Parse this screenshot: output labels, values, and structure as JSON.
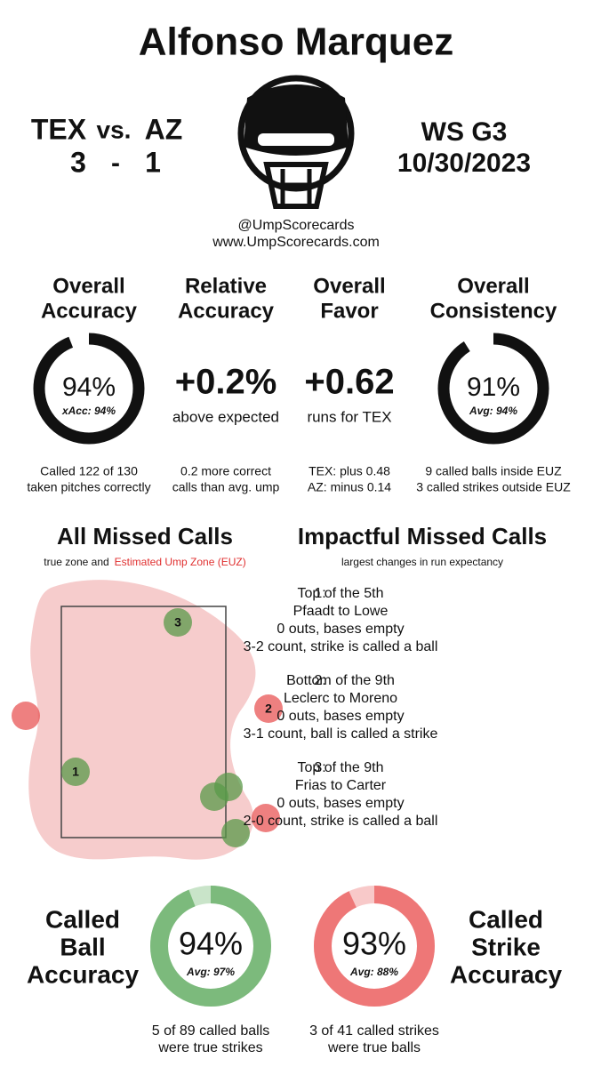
{
  "header": {
    "title": "Alfonso Marquez",
    "away_team": "TEX",
    "vs": "vs.",
    "home_team": "AZ",
    "away_score": "3",
    "dash": "-",
    "home_score": "1",
    "game": "WS  G3",
    "date": "10/30/2023",
    "handle": "@UmpScorecards",
    "website": "www.UmpScorecards.com"
  },
  "metrics": [
    {
      "title_lines": [
        "Overall",
        "Accuracy"
      ],
      "value": 94,
      "label": "94%",
      "sub": "xAcc: 94%",
      "notes": [
        "Called 122 of 130",
        "taken pitches correctly"
      ]
    },
    {
      "title_lines": [
        "Relative",
        "Accuracy"
      ],
      "label": "+0.2%",
      "caption": "above expected",
      "notes": [
        "0.2 more correct",
        "calls than avg. ump"
      ]
    },
    {
      "title_lines": [
        "Overall",
        "Favor"
      ],
      "label": "+0.62",
      "caption": "runs for TEX",
      "notes": [
        "TEX: plus 0.48",
        "AZ: minus 0.14"
      ]
    },
    {
      "title_lines": [
        "Overall",
        "Consistency"
      ],
      "value": 91,
      "label": "91%",
      "sub": "Avg: 94%",
      "notes": [
        "9 called balls inside EUZ",
        "3 called strikes outside EUZ"
      ]
    }
  ],
  "missed_calls": {
    "title": "All Missed Calls",
    "subtitle": "true zone and",
    "subtitle_highlight": "Estimated Ump Zone (EUZ)",
    "markers": [
      "1",
      "2",
      "3"
    ]
  },
  "impactful": {
    "title": "Impactful Missed Calls",
    "subtitle": "largest changes in run expectancy",
    "items": [
      {
        "number": "1:",
        "lines": [
          "Top of the 5th",
          "Pfaadt to Lowe",
          "0 outs, bases empty",
          "3-2 count, strike is called a ball"
        ]
      },
      {
        "number": "2:",
        "lines": [
          "Bottom of the 9th",
          "Leclerc to Moreno",
          "0 outs, bases empty",
          "3-1 count, ball is called a strike"
        ]
      },
      {
        "number": "3:",
        "lines": [
          "Top of the 9th",
          "Frias to Carter",
          "0 outs, bases empty",
          "2-0 count, strike is called a ball"
        ]
      }
    ]
  },
  "called": [
    {
      "title_lines": [
        "Called",
        "Ball",
        "Accuracy"
      ],
      "value": 94,
      "label": "94%",
      "sub": "Avg: 97%",
      "notes": [
        "5 of 89 called balls",
        "were true strikes"
      ]
    },
    {
      "title_lines": [
        "Called",
        "Strike",
        "Accuracy"
      ],
      "value": 93,
      "label": "93%",
      "sub": "Avg: 88%",
      "notes": [
        "3 of 41 called strikes",
        "were true balls"
      ]
    }
  ]
}
